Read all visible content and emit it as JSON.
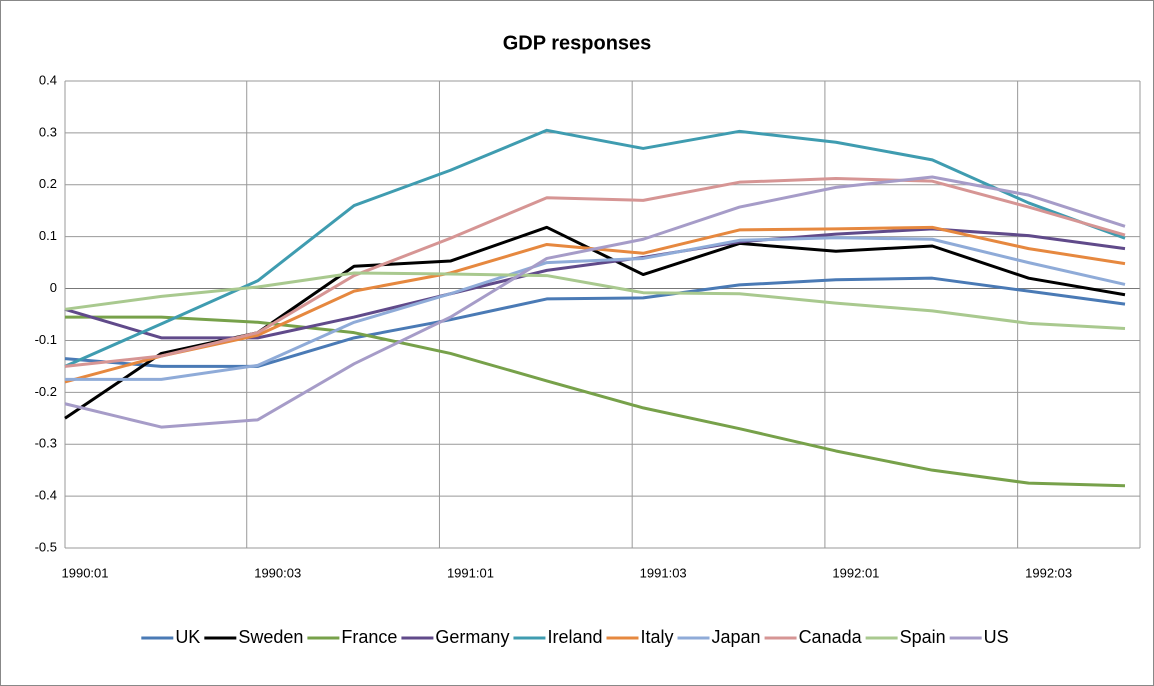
{
  "chart_data": {
    "type": "line",
    "title": "GDP responses",
    "categories": [
      "1990:01",
      null,
      "1990:03",
      null,
      "1991:01",
      null,
      "1991:03",
      null,
      "1992:01",
      null,
      "1992:03",
      null
    ],
    "ylim": [
      -0.5,
      0.4
    ],
    "yticks": [
      0.4,
      0.3,
      0.2,
      0.1,
      0,
      -0.1,
      -0.2,
      -0.3,
      -0.4,
      -0.5
    ],
    "grid": true,
    "legend": "bottom",
    "series": [
      {
        "name": "UK",
        "color": "#4a7ab5",
        "values": [
          -0.135,
          -0.15,
          -0.15,
          -0.095,
          -0.06,
          -0.02,
          -0.018,
          0.007,
          0.017,
          0.02,
          -0.005,
          -0.03
        ]
      },
      {
        "name": "Sweden",
        "color": "#000000",
        "values": [
          -0.25,
          -0.125,
          -0.085,
          0.043,
          0.053,
          0.118,
          0.027,
          0.087,
          0.072,
          0.082,
          0.02,
          -0.012
        ]
      },
      {
        "name": "France",
        "color": "#77a14a",
        "values": [
          -0.055,
          -0.055,
          -0.065,
          -0.085,
          -0.125,
          -0.178,
          -0.23,
          -0.27,
          -0.313,
          -0.35,
          -0.375,
          -0.38
        ]
      },
      {
        "name": "Germany",
        "color": "#604a8a",
        "values": [
          -0.04,
          -0.095,
          -0.095,
          -0.055,
          -0.01,
          0.035,
          0.06,
          0.09,
          0.105,
          0.115,
          0.102,
          0.077
        ]
      },
      {
        "name": "Ireland",
        "color": "#3f9cb0",
        "values": [
          -0.15,
          -0.068,
          0.015,
          0.16,
          0.228,
          0.305,
          0.27,
          0.303,
          0.282,
          0.248,
          0.165,
          0.097
        ]
      },
      {
        "name": "Italy",
        "color": "#e6883f",
        "values": [
          -0.18,
          -0.13,
          -0.09,
          -0.005,
          0.03,
          0.085,
          0.068,
          0.113,
          0.115,
          0.118,
          0.077,
          0.048
        ]
      },
      {
        "name": "Japan",
        "color": "#8fabd8",
        "values": [
          -0.175,
          -0.175,
          -0.148,
          -0.065,
          -0.01,
          0.05,
          0.058,
          0.093,
          0.098,
          0.095,
          0.05,
          0.008
        ]
      },
      {
        "name": "Canada",
        "color": "#d69594",
        "values": [
          -0.15,
          -0.13,
          -0.085,
          0.025,
          0.097,
          0.175,
          0.17,
          0.205,
          0.212,
          0.207,
          0.157,
          0.103
        ]
      },
      {
        "name": "Spain",
        "color": "#a9c98f",
        "values": [
          -0.04,
          -0.015,
          0.003,
          0.03,
          0.028,
          0.025,
          -0.008,
          -0.01,
          -0.028,
          -0.043,
          -0.067,
          -0.077
        ]
      },
      {
        "name": "US",
        "color": "#a69cc8",
        "values": [
          -0.222,
          -0.267,
          -0.253,
          -0.145,
          -0.055,
          0.058,
          0.095,
          0.157,
          0.195,
          0.215,
          0.18,
          0.12
        ]
      }
    ]
  }
}
